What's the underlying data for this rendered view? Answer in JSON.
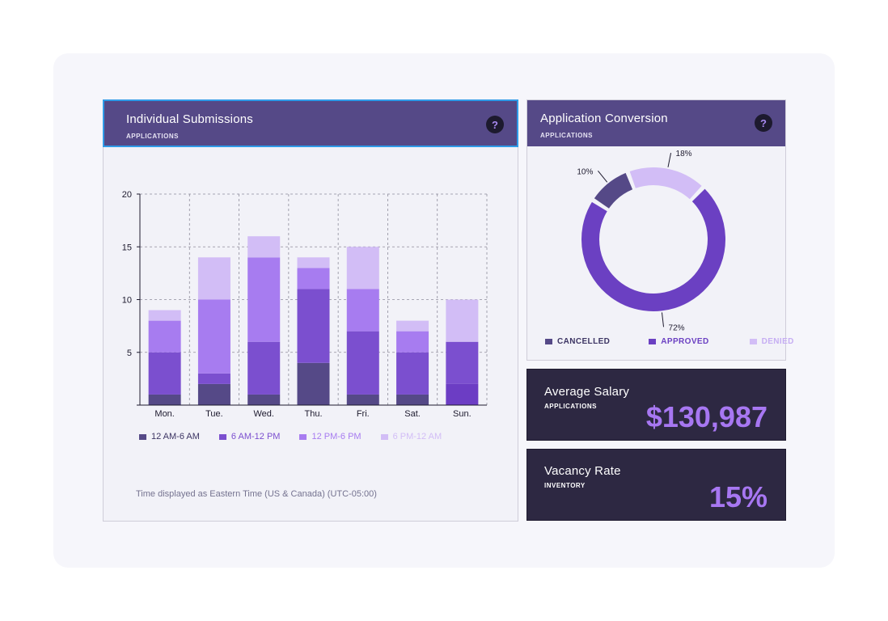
{
  "submissions": {
    "title": "Individual Submissions",
    "subtitle": "APPLICATIONS",
    "help_label": "?",
    "footnote": "Time displayed as Eastern Time (US & Canada) (UTC-05:00)"
  },
  "conversion": {
    "title": "Application Conversion",
    "subtitle": "APPLICATIONS",
    "help_label": "?"
  },
  "salary": {
    "title": "Average Salary",
    "subtitle": "APPLICATIONS",
    "value": "$130,987"
  },
  "vacancy": {
    "title": "Vacancy Rate",
    "subtitle": "INVENTORY",
    "value": "15%"
  },
  "chart_data": [
    {
      "type": "bar",
      "stacked": true,
      "categories": [
        "Mon.",
        "Tue.",
        "Wed.",
        "Thu.",
        "Fri.",
        "Sat.",
        "Sun."
      ],
      "ylim": [
        0,
        20
      ],
      "yticks": [
        5,
        10,
        15,
        20
      ],
      "grid": true,
      "legend_position": "bottom",
      "series": [
        {
          "name": "12 AM-6 AM",
          "color": "#554987",
          "values": [
            1,
            2,
            1,
            4,
            1,
            1,
            0
          ]
        },
        {
          "name": "6 AM-12 PM",
          "color": "#7b4fcf",
          "values": [
            4,
            1,
            5,
            7,
            6,
            4,
            6
          ]
        },
        {
          "name": "12 PM-6 PM",
          "color": "#a77cf0",
          "values": [
            3,
            7,
            8,
            2,
            4,
            2,
            0
          ]
        },
        {
          "name": "6 PM-12 AM",
          "color": "#d2bdf6",
          "values": [
            1,
            4,
            2,
            1,
            4,
            1,
            4
          ]
        }
      ],
      "series_colors_extra": {
        "sunday_6am_12pm_bottom": "#6c3dc4"
      }
    },
    {
      "type": "pie",
      "donut": true,
      "legend_position": "bottom",
      "slices": [
        {
          "name": "CANCELLED",
          "label": "10%",
          "value": 10,
          "color": "#554987"
        },
        {
          "name": "DENIED",
          "label": "18%",
          "value": 18,
          "color": "#d2bdf6"
        },
        {
          "name": "APPROVED",
          "label": "72%",
          "value": 72,
          "color": "#6b40c2"
        }
      ],
      "legend_order": [
        "CANCELLED",
        "APPROVED",
        "DENIED"
      ]
    }
  ]
}
